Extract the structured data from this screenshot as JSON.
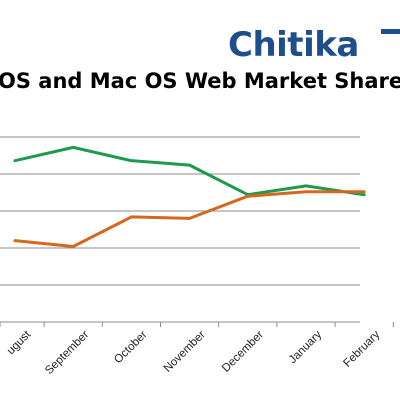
{
  "logo": {
    "text": "Chitika",
    "color": "#1f4e8c"
  },
  "chart_data": {
    "type": "line",
    "title": "OS and Mac OS Web Market Share",
    "xlabel": "",
    "ylabel": "",
    "categories": [
      "ugust",
      "September",
      "October",
      "November",
      "December",
      "January",
      "February"
    ],
    "series": [
      {
        "color": "#1e9a4e",
        "values": [
          5.45,
          5.9,
          5.45,
          5.3,
          4.3,
          4.6,
          4.3
        ]
      },
      {
        "color": "#d4691e",
        "values": [
          2.75,
          2.55,
          3.55,
          3.5,
          4.25,
          4.4,
          4.4
        ]
      }
    ],
    "ylim": [
      0,
      7.5
    ],
    "grid": true,
    "legend": "none"
  }
}
